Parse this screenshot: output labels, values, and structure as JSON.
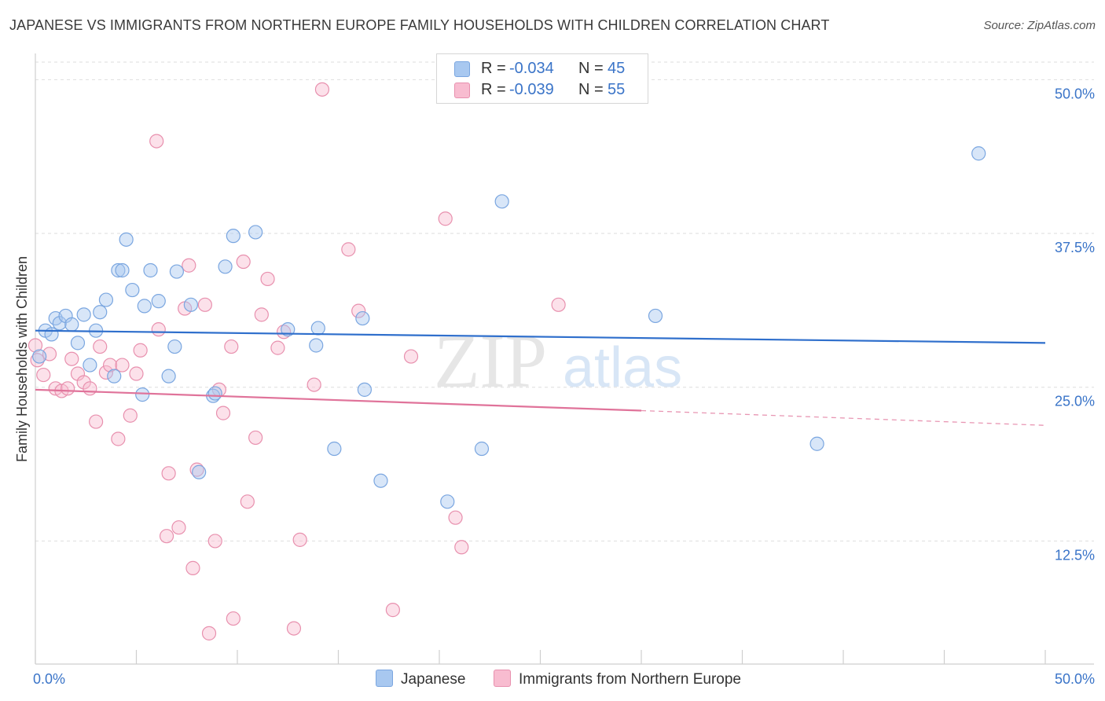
{
  "title": "JAPANESE VS IMMIGRANTS FROM NORTHERN EUROPE FAMILY HOUSEHOLDS WITH CHILDREN CORRELATION CHART",
  "source": "Source: ZipAtlas.com",
  "watermark": {
    "zip": "ZIP",
    "atlas": "atlas"
  },
  "legend": {
    "series": [
      {
        "r_label": "R =",
        "r_value": "-0.034",
        "n_label": "N =",
        "n_value": "45",
        "color": "#a8c8f0",
        "stroke": "#7aa6e0"
      },
      {
        "r_label": "R =",
        "r_value": "-0.039",
        "n_label": "N =",
        "n_value": "55",
        "color": "#f8bcd0",
        "stroke": "#e890ae"
      }
    ]
  },
  "chart_data": {
    "type": "scatter",
    "ylabel": "Family Households with Children",
    "xlabel": "",
    "xlim": [
      0,
      50
    ],
    "ylim": [
      2.5,
      52
    ],
    "x_tick_labels": [
      "0.0%",
      "50.0%"
    ],
    "y_ticks": [
      12.5,
      25.0,
      37.5,
      50.0
    ],
    "y_tick_labels": [
      "12.5%",
      "25.0%",
      "37.5%",
      "50.0%"
    ],
    "grid": "horizontal dashed",
    "series": [
      {
        "name": "Japanese",
        "color": "#a8c8f0",
        "stroke": "#7aa6e0",
        "line_color": "#2f6fcc",
        "trend": {
          "x": [
            0,
            50
          ],
          "y": [
            29.6,
            28.6
          ]
        },
        "points": [
          [
            0.2,
            27.5
          ],
          [
            0.5,
            29.6
          ],
          [
            0.8,
            29.3
          ],
          [
            1.0,
            30.6
          ],
          [
            1.2,
            30.2
          ],
          [
            1.5,
            30.8
          ],
          [
            1.8,
            30.1
          ],
          [
            2.1,
            28.6
          ],
          [
            2.4,
            30.9
          ],
          [
            2.7,
            26.8
          ],
          [
            3.0,
            29.6
          ],
          [
            3.2,
            31.1
          ],
          [
            3.5,
            32.1
          ],
          [
            3.9,
            25.9
          ],
          [
            4.1,
            34.5
          ],
          [
            4.3,
            34.5
          ],
          [
            4.5,
            37.0
          ],
          [
            4.8,
            32.9
          ],
          [
            5.3,
            24.4
          ],
          [
            5.4,
            31.6
          ],
          [
            5.7,
            34.5
          ],
          [
            6.1,
            32.0
          ],
          [
            6.6,
            25.9
          ],
          [
            6.9,
            28.3
          ],
          [
            7.0,
            34.4
          ],
          [
            7.7,
            31.7
          ],
          [
            8.1,
            18.1
          ],
          [
            8.8,
            24.3
          ],
          [
            8.9,
            24.5
          ],
          [
            9.4,
            34.8
          ],
          [
            9.8,
            37.3
          ],
          [
            10.9,
            37.6
          ],
          [
            12.5,
            29.7
          ],
          [
            13.9,
            28.4
          ],
          [
            14.0,
            29.8
          ],
          [
            14.8,
            20.0
          ],
          [
            16.2,
            30.6
          ],
          [
            16.3,
            24.8
          ],
          [
            17.1,
            17.4
          ],
          [
            20.4,
            15.7
          ],
          [
            22.1,
            20.0
          ],
          [
            23.1,
            40.1
          ],
          [
            30.7,
            30.8
          ],
          [
            38.7,
            20.4
          ],
          [
            46.7,
            44.0
          ]
        ]
      },
      {
        "name": "Immigrants from Northern Europe",
        "color": "#f8bcd0",
        "stroke": "#e890ae",
        "line_color": "#e0739a",
        "trend": {
          "x": [
            0,
            30
          ],
          "y": [
            24.8,
            23.1
          ]
        },
        "trend_dashed": {
          "x": [
            30,
            50
          ],
          "y": [
            23.1,
            21.9
          ]
        },
        "points": [
          [
            0.1,
            27.2
          ],
          [
            0.4,
            26.0
          ],
          [
            0.7,
            27.7
          ],
          [
            1.0,
            24.9
          ],
          [
            1.3,
            24.7
          ],
          [
            1.6,
            24.9
          ],
          [
            1.8,
            27.3
          ],
          [
            2.1,
            26.1
          ],
          [
            2.4,
            25.4
          ],
          [
            2.7,
            24.9
          ],
          [
            3.0,
            22.2
          ],
          [
            3.2,
            28.3
          ],
          [
            3.5,
            26.2
          ],
          [
            3.7,
            26.8
          ],
          [
            4.1,
            20.8
          ],
          [
            4.3,
            26.8
          ],
          [
            4.7,
            22.7
          ],
          [
            5.0,
            26.1
          ],
          [
            5.2,
            28.0
          ],
          [
            6.0,
            45.0
          ],
          [
            6.1,
            29.7
          ],
          [
            6.5,
            12.9
          ],
          [
            6.6,
            18.0
          ],
          [
            7.1,
            13.6
          ],
          [
            7.4,
            31.4
          ],
          [
            7.6,
            34.9
          ],
          [
            7.8,
            10.3
          ],
          [
            8.0,
            18.3
          ],
          [
            8.4,
            31.7
          ],
          [
            8.6,
            5.0
          ],
          [
            8.9,
            12.5
          ],
          [
            9.1,
            24.8
          ],
          [
            9.3,
            22.9
          ],
          [
            9.7,
            28.3
          ],
          [
            9.8,
            6.2
          ],
          [
            10.3,
            35.2
          ],
          [
            10.5,
            15.7
          ],
          [
            10.9,
            20.9
          ],
          [
            11.2,
            30.9
          ],
          [
            11.5,
            33.8
          ],
          [
            12.0,
            28.2
          ],
          [
            12.3,
            29.5
          ],
          [
            12.8,
            5.4
          ],
          [
            13.1,
            12.6
          ],
          [
            13.8,
            25.2
          ],
          [
            14.2,
            49.2
          ],
          [
            15.5,
            36.2
          ],
          [
            16.0,
            31.2
          ],
          [
            17.7,
            6.9
          ],
          [
            18.6,
            27.5
          ],
          [
            20.3,
            38.7
          ],
          [
            20.8,
            14.4
          ],
          [
            21.1,
            12.0
          ],
          [
            25.9,
            31.7
          ],
          [
            0.0,
            28.4
          ]
        ]
      }
    ]
  }
}
